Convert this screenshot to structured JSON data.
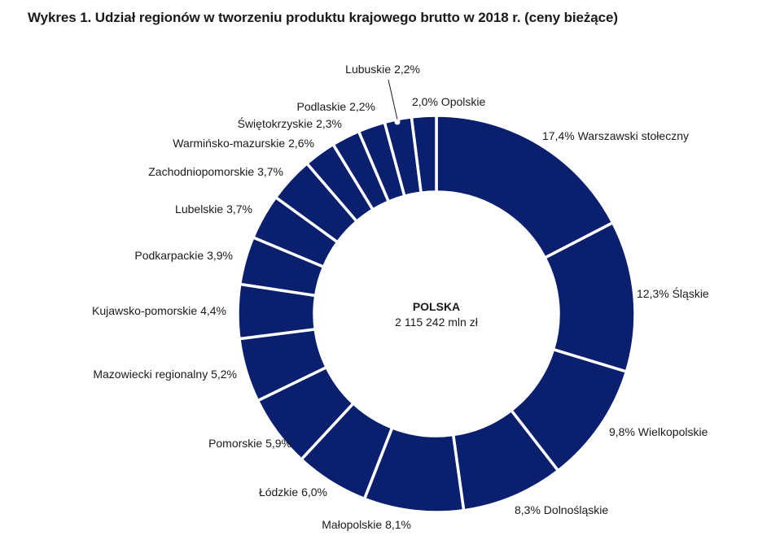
{
  "chart_data": {
    "type": "pie",
    "variant": "donut",
    "title": "Wykres 1. Udział regionów w tworzeniu produktu krajowego brutto w 2018 r. (ceny bieżące)",
    "center": {
      "title": "POLSKA",
      "value": "2 115 242 mln zł"
    },
    "unit": "%",
    "colors": {
      "slice": "#0a1f6e",
      "separator": "#ffffff",
      "text": "#1a1a1a"
    },
    "slices": [
      {
        "name": "Warszawski stołeczny",
        "value": 17.4,
        "label": "17,4% Warszawski stołeczny"
      },
      {
        "name": "Śląskie",
        "value": 12.3,
        "label": "12,3% Śląskie"
      },
      {
        "name": "Wielkopolskie",
        "value": 9.8,
        "label": "9,8% Wielkopolskie"
      },
      {
        "name": "Dolnośląskie",
        "value": 8.3,
        "label": "8,3% Dolnośląskie"
      },
      {
        "name": "Małopolskie",
        "value": 8.1,
        "label": "Małopolskie 8,1%"
      },
      {
        "name": "Łódzkie",
        "value": 6.0,
        "label": "Łódzkie 6,0%"
      },
      {
        "name": "Pomorskie",
        "value": 5.9,
        "label": "Pomorskie 5,9%"
      },
      {
        "name": "Mazowiecki regionalny",
        "value": 5.2,
        "label": "Mazowiecki regionalny 5,2%"
      },
      {
        "name": "Kujawsko-pomorskie",
        "value": 4.4,
        "label": "Kujawsko-pomorskie 4,4%"
      },
      {
        "name": "Podkarpackie",
        "value": 3.9,
        "label": "Podkarpackie 3,9%"
      },
      {
        "name": "Lubelskie",
        "value": 3.7,
        "label": "Lubelskie 3,7%"
      },
      {
        "name": "Zachodniopomorskie",
        "value": 3.7,
        "label": "Zachodniopomorskie 3,7%"
      },
      {
        "name": "Warmińsko-mazurskie",
        "value": 2.6,
        "label": "Warmińsko-mazurskie 2,6%"
      },
      {
        "name": "Świętokrzyskie",
        "value": 2.3,
        "label": "Świętokrzyskie 2,3%"
      },
      {
        "name": "Podlaskie",
        "value": 2.2,
        "label": "Podlaskie 2,2%"
      },
      {
        "name": "Lubuskie",
        "value": 2.2,
        "label": "Lubuskie 2,2%"
      },
      {
        "name": "Opolskie",
        "value": 2.0,
        "label": "2,0% Opolskie"
      }
    ]
  }
}
